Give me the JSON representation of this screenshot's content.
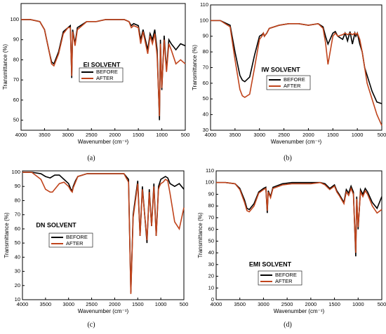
{
  "chart_data": [
    {
      "type": "line",
      "annotation": "EI SOLVENT",
      "caption": "(a)",
      "x_label": "Wavenumber (cm⁻¹)",
      "y_label": "Transmittance (%)",
      "x": [
        4000,
        3800,
        3600,
        3500,
        3400,
        3350,
        3300,
        3200,
        3100,
        3000,
        2950,
        2920,
        2900,
        2850,
        2800,
        2600,
        2400,
        2200,
        2000,
        1800,
        1700,
        1650,
        1600,
        1500,
        1450,
        1400,
        1300,
        1250,
        1200,
        1150,
        1100,
        1050,
        1030,
        1000,
        950,
        900,
        850,
        800,
        700,
        600,
        500
      ],
      "xlim": [
        4000,
        500
      ],
      "xticks": [
        4000,
        3500,
        3000,
        2500,
        2000,
        1500,
        1000,
        500
      ],
      "ylim": [
        45,
        108
      ],
      "yticks": [
        50,
        60,
        70,
        80,
        90,
        100
      ],
      "series": [
        {
          "name": "BEFORE",
          "color": "#000000",
          "values": [
            100,
            100,
            99,
            95,
            84,
            79,
            78,
            84,
            94,
            96,
            97,
            71,
            95,
            88,
            96,
            99,
            99,
            100,
            100,
            100,
            99,
            97,
            98,
            97,
            90,
            95,
            85,
            93,
            90,
            95,
            85,
            50,
            90,
            65,
            92,
            75,
            90,
            88,
            85,
            88,
            87
          ]
        },
        {
          "name": "AFTER",
          "color": "#c0441c",
          "values": [
            100,
            100,
            99,
            95,
            84,
            78,
            77,
            83,
            93,
            96,
            96,
            72,
            94,
            87,
            95,
            99,
            99,
            100,
            100,
            100,
            99,
            96,
            97,
            96,
            88,
            94,
            83,
            92,
            88,
            93,
            82,
            52,
            88,
            66,
            90,
            74,
            88,
            85,
            78,
            80,
            78
          ]
        }
      ]
    },
    {
      "type": "line",
      "annotation": "IW SOLVENT",
      "caption": "(b)",
      "x_label": "Wavenumber (cm⁻¹)",
      "y_label": "Transmittance (%)",
      "x": [
        4000,
        3800,
        3600,
        3500,
        3400,
        3350,
        3300,
        3200,
        3100,
        3000,
        2950,
        2920,
        2900,
        2850,
        2800,
        2600,
        2400,
        2200,
        2000,
        1800,
        1700,
        1650,
        1600,
        1500,
        1450,
        1400,
        1300,
        1250,
        1200,
        1150,
        1100,
        1050,
        1030,
        1000,
        950,
        900,
        850,
        800,
        700,
        600,
        500
      ],
      "xlim": [
        4000,
        500
      ],
      "xticks": [
        4000,
        3500,
        3000,
        2500,
        2000,
        1500,
        1000,
        500
      ],
      "ylim": [
        30,
        110
      ],
      "yticks": [
        30,
        40,
        50,
        60,
        70,
        80,
        90,
        100,
        110
      ],
      "series": [
        {
          "name": "BEFORE",
          "color": "#000000",
          "values": [
            100,
            100,
            97,
            80,
            65,
            62,
            61,
            64,
            78,
            90,
            91,
            92,
            90,
            92,
            95,
            97,
            98,
            98,
            97,
            98,
            96,
            90,
            85,
            92,
            93,
            90,
            88,
            92,
            87,
            93,
            85,
            92,
            90,
            92,
            85,
            80,
            70,
            65,
            55,
            48,
            47
          ]
        },
        {
          "name": "AFTER",
          "color": "#c0441c",
          "values": [
            100,
            100,
            96,
            75,
            56,
            52,
            51,
            53,
            70,
            88,
            90,
            92,
            90,
            92,
            95,
            97,
            98,
            98,
            97,
            98,
            95,
            86,
            72,
            90,
            92,
            90,
            91,
            92,
            91,
            92,
            91,
            92,
            91,
            92,
            88,
            80,
            70,
            60,
            50,
            40,
            33
          ]
        }
      ]
    },
    {
      "type": "line",
      "annotation": "DN SOLVENT",
      "caption": "(c)",
      "x_label": "Wavenumber (cm⁻¹)",
      "y_label": "Transmittance (%)",
      "x": [
        4000,
        3800,
        3600,
        3500,
        3400,
        3350,
        3300,
        3200,
        3100,
        3000,
        2950,
        2920,
        2900,
        2850,
        2800,
        2600,
        2400,
        2200,
        2000,
        1800,
        1700,
        1650,
        1600,
        1500,
        1450,
        1400,
        1300,
        1250,
        1200,
        1150,
        1100,
        1050,
        1030,
        1000,
        950,
        900,
        850,
        800,
        700,
        600,
        500
      ],
      "xlim": [
        4000,
        500
      ],
      "xticks": [
        4000,
        3500,
        3000,
        2500,
        2000,
        1500,
        1000,
        500
      ],
      "ylim": [
        10,
        101
      ],
      "yticks": [
        10,
        20,
        30,
        40,
        50,
        60,
        70,
        80,
        90,
        100
      ],
      "series": [
        {
          "name": "BEFORE",
          "color": "#000000",
          "values": [
            100,
            100,
            99,
            97,
            96,
            97,
            98,
            98,
            95,
            92,
            88,
            87,
            90,
            94,
            97,
            99,
            99,
            99,
            99,
            99,
            95,
            15,
            70,
            94,
            55,
            90,
            50,
            88,
            62,
            92,
            55,
            90,
            92,
            95,
            96,
            97,
            96,
            92,
            90,
            92,
            88
          ]
        },
        {
          "name": "AFTER",
          "color": "#c0441c",
          "values": [
            100,
            100,
            95,
            88,
            86,
            86,
            88,
            92,
            93,
            90,
            87,
            86,
            89,
            93,
            97,
            99,
            99,
            99,
            99,
            99,
            93,
            14,
            68,
            92,
            55,
            88,
            52,
            86,
            62,
            90,
            55,
            88,
            90,
            92,
            93,
            95,
            94,
            85,
            65,
            60,
            75
          ]
        }
      ]
    },
    {
      "type": "line",
      "annotation": "EMI SOLVENT",
      "caption": "(d)",
      "x_label": "Wavenumber (cm⁻¹)",
      "y_label": "Transmittance (%)",
      "x": [
        4000,
        3800,
        3600,
        3500,
        3400,
        3350,
        3300,
        3200,
        3100,
        3000,
        2950,
        2920,
        2900,
        2850,
        2800,
        2600,
        2400,
        2200,
        2000,
        1800,
        1700,
        1650,
        1600,
        1500,
        1450,
        1400,
        1300,
        1250,
        1200,
        1150,
        1100,
        1050,
        1030,
        1000,
        950,
        900,
        850,
        800,
        700,
        600,
        500
      ],
      "xlim": [
        4000,
        500
      ],
      "xticks": [
        4000,
        3500,
        3000,
        2500,
        2000,
        1500,
        1000,
        500
      ],
      "ylim": [
        0,
        110
      ],
      "yticks": [
        0,
        10,
        20,
        30,
        40,
        50,
        60,
        70,
        80,
        90,
        100,
        110
      ],
      "series": [
        {
          "name": "BEFORE",
          "color": "#000000",
          "values": [
            100,
            100,
            99,
            95,
            85,
            78,
            77,
            82,
            92,
            95,
            96,
            74,
            93,
            88,
            96,
            99,
            100,
            100,
            100,
            100,
            99,
            97,
            95,
            98,
            93,
            90,
            83,
            94,
            91,
            97,
            92,
            37,
            88,
            60,
            94,
            90,
            95,
            92,
            83,
            78,
            88
          ]
        },
        {
          "name": "AFTER",
          "color": "#c0441c",
          "values": [
            100,
            100,
            99,
            94,
            83,
            76,
            75,
            80,
            91,
            94,
            95,
            76,
            92,
            87,
            95,
            98,
            99,
            99,
            99,
            100,
            98,
            96,
            94,
            97,
            92,
            89,
            82,
            92,
            89,
            95,
            90,
            40,
            86,
            62,
            92,
            88,
            93,
            90,
            80,
            74,
            77
          ]
        }
      ]
    }
  ]
}
